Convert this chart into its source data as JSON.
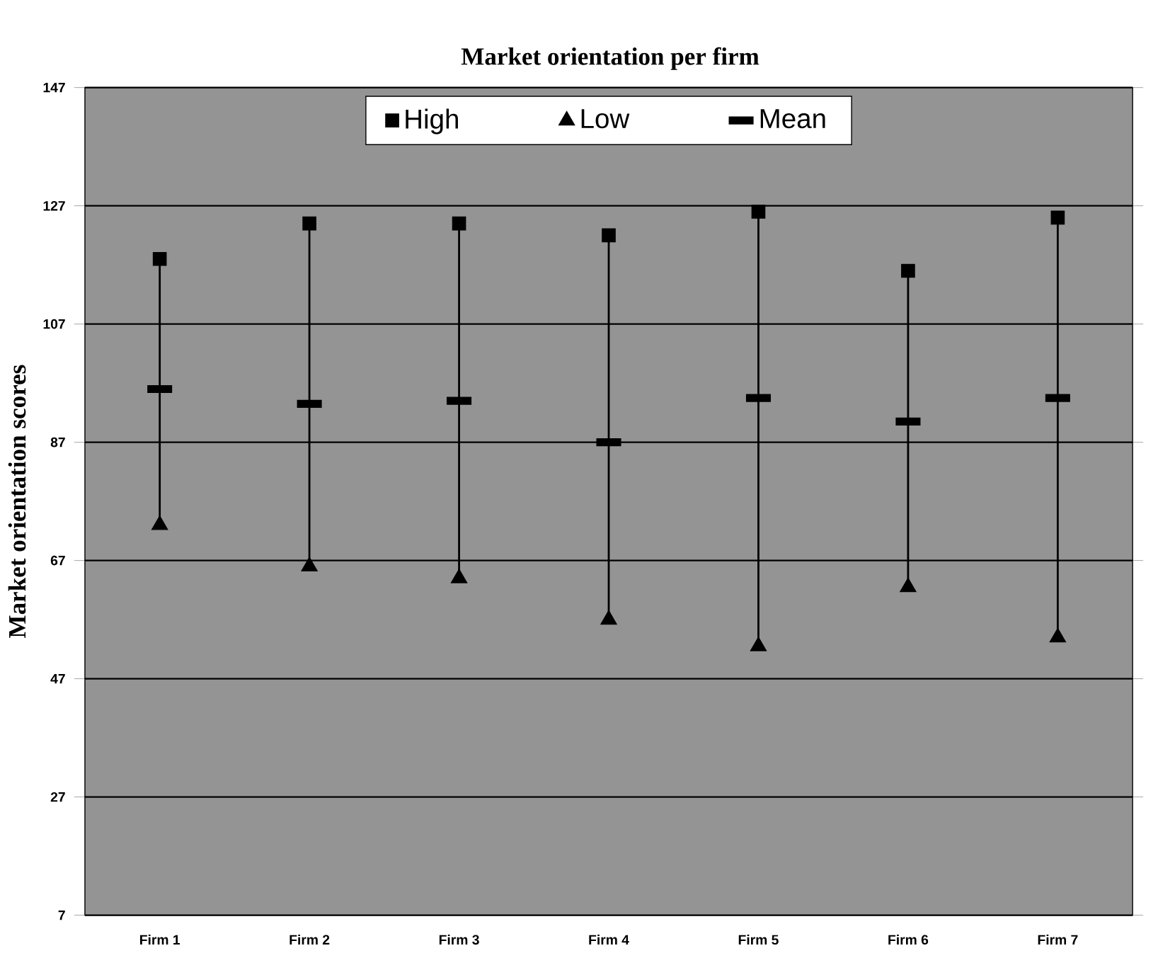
{
  "chart_data": {
    "type": "scatter",
    "title": "Market orientation per firm",
    "ylabel": "Market orientation scores",
    "categories": [
      "Firm 1",
      "Firm 2",
      "Firm 3",
      "Firm 4",
      "Firm 5",
      "Firm 6",
      "Firm 7"
    ],
    "series": [
      {
        "name": "High",
        "color": "#000000",
        "marker": "square",
        "values": [
          118,
          124,
          124,
          122,
          126,
          116,
          125
        ]
      },
      {
        "name": "Low",
        "color": "#000000",
        "marker": "triangle",
        "values": [
          73,
          66,
          64,
          57,
          52.5,
          62.5,
          54
        ]
      },
      {
        "name": "Mean",
        "color": "#000000",
        "values": [
          96,
          93.5,
          94,
          87,
          94.5,
          90.5,
          94.5
        ]
      }
    ],
    "ylim": [
      7,
      147
    ],
    "yticks": [
      7,
      27,
      47,
      67,
      87,
      107,
      127,
      147
    ],
    "grid": "y",
    "legend": "top"
  }
}
